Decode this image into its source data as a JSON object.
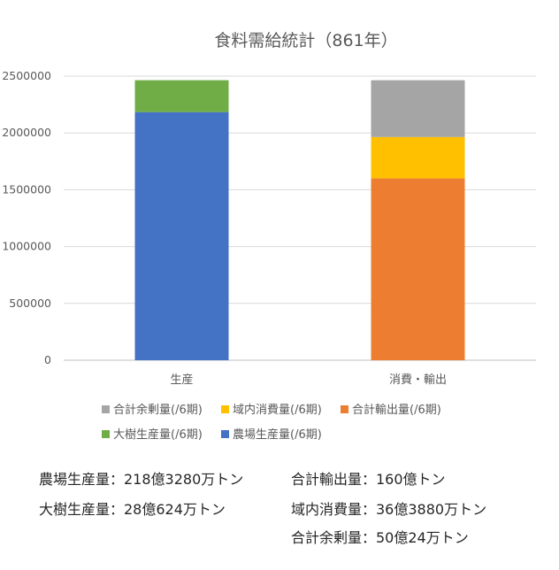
{
  "chart_data": {
    "type": "bar",
    "stacked": true,
    "title": "食料需給統計（861年）",
    "categories": [
      "生産",
      "消費・輸出"
    ],
    "ylim": [
      0,
      2500000
    ],
    "yticks": [
      0,
      500000,
      1000000,
      1500000,
      2000000,
      2500000
    ],
    "grid": true,
    "legend_position": "bottom",
    "series": [
      {
        "name": "農場生産量(/6期)",
        "color": "#4472C4",
        "values": [
          2183280,
          0
        ]
      },
      {
        "name": "大樹生産量(/6期)",
        "color": "#70AD47",
        "values": [
          280624,
          0
        ]
      },
      {
        "name": "合計輸出量(/6期)",
        "color": "#ED7D31",
        "values": [
          0,
          1600000
        ]
      },
      {
        "name": "域内消費量(/6期)",
        "color": "#FFC000",
        "values": [
          0,
          363880
        ]
      },
      {
        "name": "合計余剰量(/6期)",
        "color": "#A5A5A5",
        "values": [
          0,
          500024
        ]
      }
    ],
    "legend_rows": [
      [
        "合計余剰量(/6期)",
        "域内消費量(/6期)",
        "合計輸出量(/6期)"
      ],
      [
        "大樹生産量(/6期)",
        "農場生産量(/6期)"
      ]
    ]
  },
  "notes": {
    "farm": "農場生産量：218億3280万トン",
    "tree": "大樹生産量：28億624万トン",
    "export": "合計輸出量：160億トン",
    "consumption": "域内消費量：36億3880万トン",
    "surplus": "合計余剰量：50億24万トン"
  }
}
